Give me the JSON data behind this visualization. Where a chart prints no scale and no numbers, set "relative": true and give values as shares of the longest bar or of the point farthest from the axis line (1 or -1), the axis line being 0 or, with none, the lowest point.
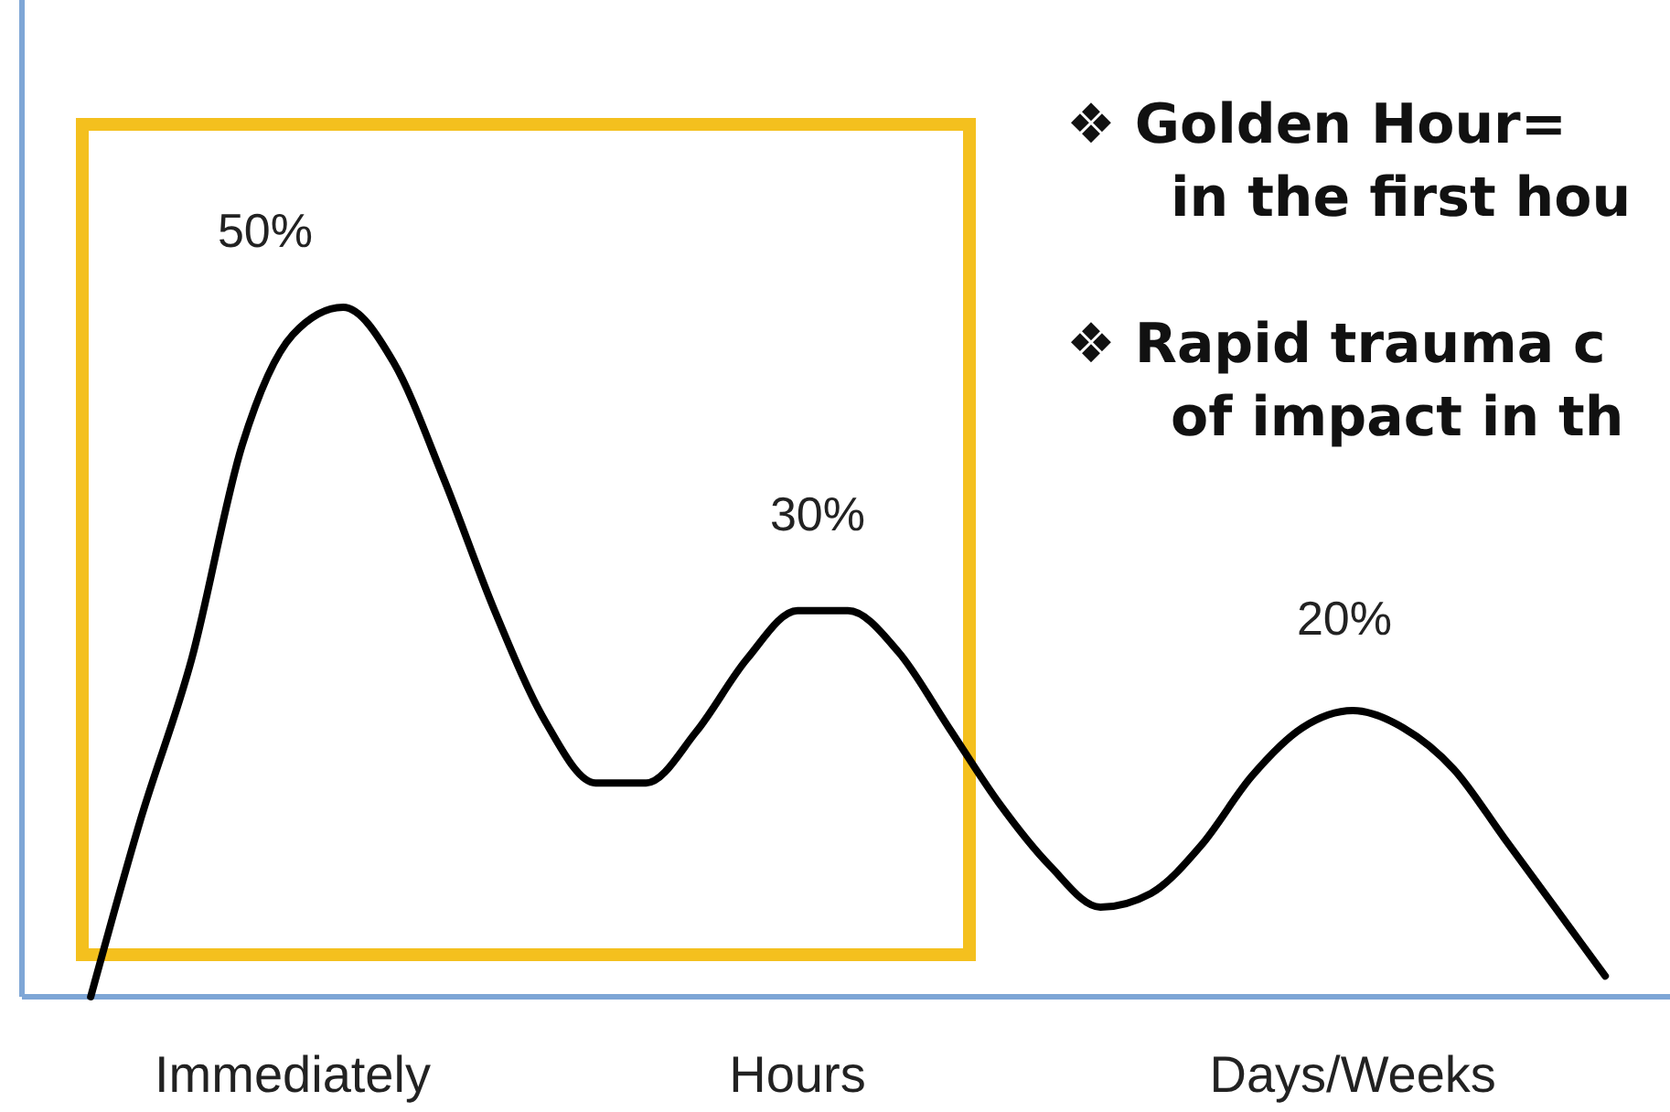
{
  "chart_data": {
    "type": "line",
    "relative": true,
    "categories": [
      null,
      null,
      null,
      null,
      "Immediately",
      null,
      null,
      null,
      null,
      null,
      null,
      null,
      null,
      null,
      "Hours",
      null,
      null,
      null,
      null,
      null,
      null,
      null,
      null,
      null,
      null,
      "Days/Weeks",
      null,
      null,
      null,
      null,
      null
    ],
    "series": [
      {
        "color": "#000000",
        "values": [
          0,
          0.26,
          0.49,
          0.8,
          0.96,
          1,
          0.92,
          0.75,
          0.56,
          0.4,
          0.31,
          0.31,
          0.385,
          0.49,
          0.56,
          0.56,
          0.5,
          0.39,
          0.28,
          0.19,
          0.13,
          0.15,
          0.22,
          0.32,
          0.39,
          0.415,
          0.39,
          0.33,
          0.23,
          0.13,
          0.03
        ]
      }
    ],
    "annotations": [
      "50%",
      "30%",
      "20%",
      "❖ Golden Hour=\nin the first hou",
      "❖ Rapid trauma c\nof impact in th"
    ]
  }
}
